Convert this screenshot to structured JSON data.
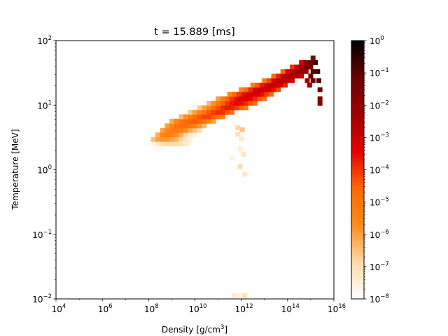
{
  "chart_data": {
    "type": "heatmap",
    "title": "t = 15.889 [ms]",
    "xlabel": "Density [g/cm",
    "xlabel_sup": "3",
    "xlabel_close": "]",
    "ylabel": "Temperature [MeV]",
    "x_scale": "log",
    "y_scale": "log",
    "xlim": [
      10000,
      1e+16
    ],
    "ylim": [
      0.01,
      100
    ],
    "x_ticks": [
      {
        "base": "10",
        "exp": "4",
        "value": 10000.0
      },
      {
        "base": "10",
        "exp": "6",
        "value": 1000000.0
      },
      {
        "base": "10",
        "exp": "8",
        "value": 100000000.0
      },
      {
        "base": "10",
        "exp": "10",
        "value": 10000000000.0
      },
      {
        "base": "10",
        "exp": "12",
        "value": 1000000000000.0
      },
      {
        "base": "10",
        "exp": "14",
        "value": 100000000000000.0
      },
      {
        "base": "10",
        "exp": "16",
        "value": 1e+16
      }
    ],
    "y_ticks": [
      {
        "base": "10",
        "exp": "−2",
        "value": 0.01
      },
      {
        "base": "10",
        "exp": "−1",
        "value": 0.1
      },
      {
        "base": "10",
        "exp": "0",
        "value": 1
      },
      {
        "base": "10",
        "exp": "1",
        "value": 10
      },
      {
        "base": "10",
        "exp": "2",
        "value": 100
      }
    ],
    "colorbar": {
      "scale": "log",
      "colormap": "gist_heat_r",
      "range": [
        1e-08,
        1
      ],
      "ticks": [
        {
          "base": "10",
          "exp": "0",
          "value": 1
        },
        {
          "base": "10",
          "exp": "−1",
          "value": 0.1
        },
        {
          "base": "10",
          "exp": "−2",
          "value": 0.01
        },
        {
          "base": "10",
          "exp": "−3",
          "value": 0.001
        },
        {
          "base": "10",
          "exp": "−4",
          "value": 0.0001
        },
        {
          "base": "10",
          "exp": "−5",
          "value": 1e-05
        },
        {
          "base": "10",
          "exp": "−6",
          "value": 1e-06
        },
        {
          "base": "10",
          "exp": "−7",
          "value": 1e-07
        },
        {
          "base": "10",
          "exp": "−8",
          "value": 1e-08
        }
      ],
      "colors": [
        "#ffffff",
        "#ffd9a6",
        "#ff8c1a",
        "#ff6600",
        "#e00000",
        "#a00000",
        "#6a0000",
        "#000000"
      ]
    },
    "cells_note": "log10(density), log10(temperature), log10(value)",
    "cells": [
      [
        8.05,
        0.4,
        -7.8
      ],
      [
        8.25,
        0.4,
        -7.6
      ],
      [
        8.45,
        0.4,
        -7.2
      ],
      [
        8.65,
        0.4,
        -7.0
      ],
      [
        8.85,
        0.4,
        -6.9
      ],
      [
        9.05,
        0.4,
        -6.9
      ],
      [
        9.25,
        0.4,
        -7.0
      ],
      [
        9.45,
        0.4,
        -7.2
      ],
      [
        9.65,
        0.4,
        -7.4
      ],
      [
        8.4,
        0.33,
        -7.9
      ],
      [
        8.6,
        0.33,
        -7.9
      ],
      [
        8.2,
        0.47,
        -6.5
      ],
      [
        8.4,
        0.47,
        -6.0
      ],
      [
        8.6,
        0.47,
        -5.9
      ],
      [
        8.8,
        0.47,
        -5.9
      ],
      [
        9.0,
        0.47,
        -6.1
      ],
      [
        9.2,
        0.47,
        -6.3
      ],
      [
        9.4,
        0.47,
        -6.8
      ],
      [
        9.6,
        0.47,
        -7.2
      ],
      [
        9.8,
        0.47,
        -7.6
      ],
      [
        8.4,
        0.54,
        -6.2
      ],
      [
        8.6,
        0.54,
        -5.5
      ],
      [
        8.8,
        0.54,
        -5.3
      ],
      [
        9.0,
        0.54,
        -5.4
      ],
      [
        9.2,
        0.54,
        -5.8
      ],
      [
        9.4,
        0.54,
        -6.3
      ],
      [
        9.6,
        0.54,
        -6.9
      ],
      [
        9.8,
        0.54,
        -7.3
      ],
      [
        10.0,
        0.54,
        -7.6
      ],
      [
        8.6,
        0.61,
        -6.0
      ],
      [
        8.8,
        0.61,
        -5.5
      ],
      [
        9.0,
        0.61,
        -5.2
      ],
      [
        9.2,
        0.61,
        -5.1
      ],
      [
        9.4,
        0.61,
        -5.3
      ],
      [
        9.6,
        0.61,
        -5.7
      ],
      [
        9.8,
        0.61,
        -6.2
      ],
      [
        10.0,
        0.61,
        -6.6
      ],
      [
        10.2,
        0.61,
        -7.0
      ],
      [
        8.8,
        0.68,
        -6.0
      ],
      [
        9.0,
        0.68,
        -5.5
      ],
      [
        9.2,
        0.68,
        -5.0
      ],
      [
        9.4,
        0.68,
        -4.8
      ],
      [
        9.6,
        0.68,
        -4.8
      ],
      [
        9.8,
        0.68,
        -5.0
      ],
      [
        10.0,
        0.68,
        -5.4
      ],
      [
        10.2,
        0.68,
        -5.9
      ],
      [
        10.4,
        0.68,
        -6.4
      ],
      [
        9.0,
        0.75,
        -6.2
      ],
      [
        9.2,
        0.75,
        -5.6
      ],
      [
        9.4,
        0.75,
        -5.1
      ],
      [
        9.6,
        0.75,
        -4.7
      ],
      [
        9.8,
        0.75,
        -4.5
      ],
      [
        10.0,
        0.75,
        -4.4
      ],
      [
        10.2,
        0.75,
        -4.6
      ],
      [
        10.4,
        0.75,
        -5.0
      ],
      [
        10.6,
        0.75,
        -5.5
      ],
      [
        10.8,
        0.75,
        -6.0
      ],
      [
        9.4,
        0.82,
        -6.4
      ],
      [
        9.6,
        0.82,
        -5.8
      ],
      [
        9.8,
        0.82,
        -5.3
      ],
      [
        10.0,
        0.82,
        -4.8
      ],
      [
        10.2,
        0.82,
        -4.4
      ],
      [
        10.4,
        0.82,
        -4.2
      ],
      [
        10.6,
        0.82,
        -4.2
      ],
      [
        10.8,
        0.82,
        -4.5
      ],
      [
        11.0,
        0.82,
        -5.0
      ],
      [
        11.2,
        0.82,
        -5.5
      ],
      [
        9.8,
        0.89,
        -6.6
      ],
      [
        10.0,
        0.89,
        -6.0
      ],
      [
        10.2,
        0.89,
        -5.4
      ],
      [
        10.4,
        0.89,
        -4.9
      ],
      [
        10.6,
        0.89,
        -4.4
      ],
      [
        10.8,
        0.89,
        -4.1
      ],
      [
        11.0,
        0.89,
        -3.9
      ],
      [
        11.2,
        0.89,
        -4.0
      ],
      [
        11.4,
        0.89,
        -4.4
      ],
      [
        11.6,
        0.89,
        -5.0
      ],
      [
        10.2,
        0.96,
        -6.6
      ],
      [
        10.4,
        0.96,
        -6.0
      ],
      [
        10.6,
        0.96,
        -5.4
      ],
      [
        10.8,
        0.96,
        -4.8
      ],
      [
        11.0,
        0.96,
        -4.3
      ],
      [
        11.2,
        0.96,
        -3.9
      ],
      [
        11.4,
        0.96,
        -3.7
      ],
      [
        11.6,
        0.96,
        -3.8
      ],
      [
        11.8,
        0.96,
        -4.1
      ],
      [
        12.0,
        0.96,
        -4.6
      ],
      [
        12.2,
        0.96,
        -5.2
      ],
      [
        10.6,
        1.03,
        -6.4
      ],
      [
        10.8,
        1.03,
        -5.8
      ],
      [
        11.0,
        1.03,
        -5.1
      ],
      [
        11.2,
        1.03,
        -4.5
      ],
      [
        11.4,
        1.03,
        -4.0
      ],
      [
        11.6,
        1.03,
        -3.7
      ],
      [
        11.8,
        1.03,
        -3.5
      ],
      [
        12.0,
        1.03,
        -3.6
      ],
      [
        12.2,
        1.03,
        -3.9
      ],
      [
        12.4,
        1.03,
        -4.4
      ],
      [
        12.6,
        1.03,
        -5.0
      ],
      [
        11.0,
        1.1,
        -6.0
      ],
      [
        11.2,
        1.1,
        -5.3
      ],
      [
        11.4,
        1.1,
        -4.6
      ],
      [
        11.6,
        1.1,
        -4.0
      ],
      [
        11.8,
        1.1,
        -3.6
      ],
      [
        12.0,
        1.1,
        -3.4
      ],
      [
        12.2,
        1.1,
        -3.3
      ],
      [
        12.4,
        1.1,
        -3.5
      ],
      [
        12.6,
        1.1,
        -3.9
      ],
      [
        12.8,
        1.1,
        -4.4
      ],
      [
        13.0,
        1.1,
        -5.0
      ],
      [
        11.5,
        1.17,
        -5.6
      ],
      [
        11.7,
        1.17,
        -4.8
      ],
      [
        11.9,
        1.17,
        -4.1
      ],
      [
        12.1,
        1.17,
        -3.6
      ],
      [
        12.3,
        1.17,
        -3.3
      ],
      [
        12.5,
        1.17,
        -3.2
      ],
      [
        12.7,
        1.17,
        -3.3
      ],
      [
        12.9,
        1.17,
        -3.6
      ],
      [
        13.1,
        1.17,
        -4.1
      ],
      [
        13.3,
        1.17,
        -4.7
      ],
      [
        12.0,
        1.24,
        -5.4
      ],
      [
        12.2,
        1.24,
        -4.6
      ],
      [
        12.4,
        1.24,
        -3.9
      ],
      [
        12.6,
        1.24,
        -3.4
      ],
      [
        12.8,
        1.24,
        -3.1
      ],
      [
        13.0,
        1.24,
        -3.0
      ],
      [
        13.2,
        1.24,
        -3.2
      ],
      [
        13.4,
        1.24,
        -3.6
      ],
      [
        13.6,
        1.24,
        -4.2
      ],
      [
        12.5,
        1.31,
        -5.3
      ],
      [
        12.7,
        1.31,
        -4.4
      ],
      [
        12.9,
        1.31,
        -3.7
      ],
      [
        13.1,
        1.31,
        -3.1
      ],
      [
        13.3,
        1.31,
        -2.9
      ],
      [
        13.5,
        1.31,
        -2.9
      ],
      [
        13.7,
        1.31,
        -3.2
      ],
      [
        13.9,
        1.31,
        -3.8
      ],
      [
        13.0,
        1.38,
        -5.1
      ],
      [
        13.2,
        1.38,
        -4.2
      ],
      [
        13.4,
        1.38,
        -3.4
      ],
      [
        13.6,
        1.38,
        -2.9
      ],
      [
        13.8,
        1.38,
        -2.7
      ],
      [
        14.0,
        1.38,
        -2.8
      ],
      [
        14.2,
        1.38,
        -3.2
      ],
      [
        13.4,
        1.45,
        -4.8
      ],
      [
        13.6,
        1.45,
        -3.8
      ],
      [
        13.8,
        1.45,
        -3.0
      ],
      [
        14.0,
        1.45,
        -2.6
      ],
      [
        14.2,
        1.45,
        -2.4
      ],
      [
        14.4,
        1.45,
        -2.5
      ],
      [
        14.6,
        1.45,
        -2.9
      ],
      [
        13.8,
        1.52,
        -4.5
      ],
      [
        14.0,
        1.52,
        -3.4
      ],
      [
        14.2,
        1.52,
        -2.6
      ],
      [
        14.4,
        1.52,
        -2.2
      ],
      [
        14.6,
        1.52,
        -2.0
      ],
      [
        14.8,
        1.52,
        -2.1
      ],
      [
        14.2,
        1.59,
        -4.0
      ],
      [
        14.4,
        1.59,
        -2.9
      ],
      [
        14.6,
        1.59,
        -2.1
      ],
      [
        14.8,
        1.59,
        -1.6
      ],
      [
        15.0,
        1.59,
        -1.4
      ],
      [
        14.6,
        1.66,
        -3.2
      ],
      [
        14.8,
        1.66,
        -2.0
      ],
      [
        15.0,
        1.66,
        -1.2
      ],
      [
        15.1,
        1.73,
        -1.6
      ],
      [
        15.2,
        1.66,
        -0.7
      ],
      [
        15.3,
        1.52,
        -0.6
      ],
      [
        15.35,
        1.38,
        -0.9
      ],
      [
        15.4,
        1.24,
        -1.2
      ],
      [
        15.4,
        1.1,
        -1.5
      ],
      [
        15.4,
        1.03,
        -1.8
      ],
      [
        15.1,
        1.52,
        -0.9
      ],
      [
        15.1,
        1.38,
        -1.2
      ],
      [
        15.0,
        1.45,
        -1.3
      ],
      [
        14.95,
        1.31,
        -2.2
      ],
      [
        14.85,
        1.38,
        -2.4
      ],
      [
        11.85,
        0.65,
        -6.8
      ],
      [
        11.85,
        0.55,
        -7.1
      ],
      [
        12.0,
        0.48,
        -7.3
      ],
      [
        11.95,
        0.32,
        -7.4
      ],
      [
        12.1,
        0.24,
        -7.2
      ],
      [
        11.95,
        0.05,
        -6.9
      ],
      [
        12.15,
        -0.07,
        -7.3
      ],
      [
        11.6,
        0.18,
        -7.6
      ],
      [
        12.05,
        0.62,
        -6.6
      ],
      [
        11.7,
        -1.95,
        -7.4
      ],
      [
        11.9,
        -1.95,
        -7.6
      ],
      [
        12.15,
        -1.95,
        -7.1
      ]
    ]
  }
}
